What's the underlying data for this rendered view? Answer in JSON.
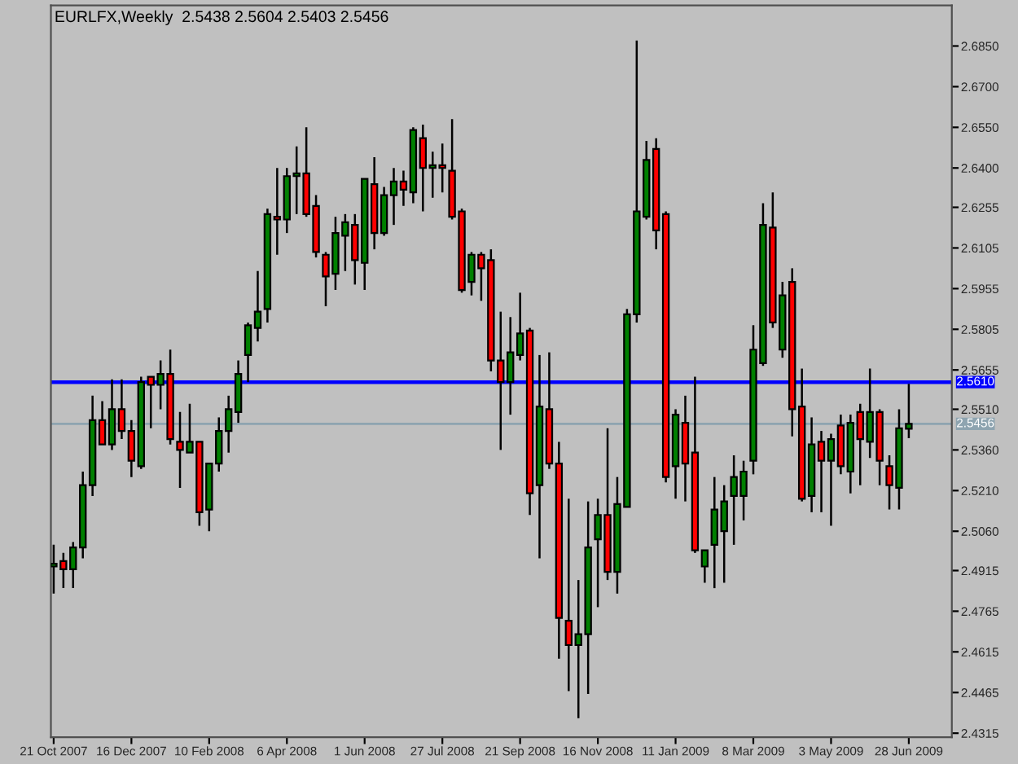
{
  "chart_data": {
    "type": "candlestick",
    "title": "EURLFX,Weekly  2.5438 2.5604 2.5403 2.5456",
    "x": [
      "2007-10-21",
      "2007-10-28",
      "2007-11-04",
      "2007-11-11",
      "2007-11-18",
      "2007-11-25",
      "2007-12-02",
      "2007-12-09",
      "2007-12-16",
      "2007-12-23",
      "2007-12-30",
      "2008-01-06",
      "2008-01-13",
      "2008-01-20",
      "2008-01-27",
      "2008-02-03",
      "2008-02-10",
      "2008-02-17",
      "2008-02-24",
      "2008-03-02",
      "2008-03-09",
      "2008-03-16",
      "2008-03-23",
      "2008-03-30",
      "2008-04-06",
      "2008-04-13",
      "2008-04-20",
      "2008-04-27",
      "2008-05-04",
      "2008-05-11",
      "2008-05-18",
      "2008-05-25",
      "2008-06-01",
      "2008-06-08",
      "2008-06-15",
      "2008-06-22",
      "2008-06-29",
      "2008-07-06",
      "2008-07-13",
      "2008-07-20",
      "2008-07-27",
      "2008-08-03",
      "2008-08-10",
      "2008-08-17",
      "2008-08-24",
      "2008-08-31",
      "2008-09-07",
      "2008-09-14",
      "2008-09-21",
      "2008-09-28",
      "2008-10-05",
      "2008-10-12",
      "2008-10-19",
      "2008-10-26",
      "2008-11-02",
      "2008-11-09",
      "2008-11-16",
      "2008-11-23",
      "2008-11-30",
      "2008-12-07",
      "2008-12-14",
      "2008-12-21",
      "2008-12-28",
      "2009-01-04",
      "2009-01-11",
      "2009-01-18",
      "2009-01-25",
      "2009-02-01",
      "2009-02-08",
      "2009-02-15",
      "2009-02-22",
      "2009-03-01",
      "2009-03-08",
      "2009-03-15",
      "2009-03-22",
      "2009-03-29",
      "2009-04-05",
      "2009-04-12",
      "2009-04-19",
      "2009-04-26",
      "2009-05-03",
      "2009-05-10",
      "2009-05-17",
      "2009-05-24",
      "2009-05-31",
      "2009-06-07",
      "2009-06-14",
      "2009-06-21",
      "2009-06-28"
    ],
    "ohlc": [
      [
        2.493,
        2.501,
        2.483,
        2.494
      ],
      [
        2.495,
        2.498,
        2.485,
        2.492
      ],
      [
        2.492,
        2.502,
        2.485,
        2.5
      ],
      [
        2.5,
        2.528,
        2.496,
        2.523
      ],
      [
        2.523,
        2.556,
        2.519,
        2.547
      ],
      [
        2.547,
        2.554,
        2.538,
        2.538
      ],
      [
        2.538,
        2.562,
        2.536,
        2.551
      ],
      [
        2.551,
        2.562,
        2.54,
        2.543
      ],
      [
        2.543,
        2.547,
        2.526,
        2.532
      ],
      [
        2.53,
        2.563,
        2.529,
        2.561
      ],
      [
        2.563,
        2.563,
        2.544,
        2.56
      ],
      [
        2.56,
        2.569,
        2.551,
        2.564
      ],
      [
        2.564,
        2.573,
        2.538,
        2.54
      ],
      [
        2.539,
        2.55,
        2.522,
        2.536
      ],
      [
        2.535,
        2.553,
        2.535,
        2.539
      ],
      [
        2.539,
        2.539,
        2.508,
        2.513
      ],
      [
        2.514,
        2.531,
        2.506,
        2.531
      ],
      [
        2.531,
        2.548,
        2.528,
        2.543
      ],
      [
        2.543,
        2.556,
        2.535,
        2.551
      ],
      [
        2.55,
        2.569,
        2.546,
        2.564
      ],
      [
        2.571,
        2.583,
        2.561,
        2.582
      ],
      [
        2.581,
        2.602,
        2.576,
        2.587
      ],
      [
        2.588,
        2.625,
        2.583,
        2.623
      ],
      [
        2.622,
        2.64,
        2.608,
        2.621
      ],
      [
        2.621,
        2.64,
        2.616,
        2.637
      ],
      [
        2.637,
        2.648,
        2.623,
        2.638
      ],
      [
        2.638,
        2.655,
        2.622,
        2.623
      ],
      [
        2.626,
        2.63,
        2.607,
        2.609
      ],
      [
        2.608,
        2.609,
        2.589,
        2.6
      ],
      [
        2.601,
        2.622,
        2.595,
        2.616
      ],
      [
        2.615,
        2.623,
        2.602,
        2.62
      ],
      [
        2.619,
        2.623,
        2.597,
        2.606
      ],
      [
        2.605,
        2.636,
        2.595,
        2.636
      ],
      [
        2.634,
        2.644,
        2.61,
        2.616
      ],
      [
        2.616,
        2.633,
        2.615,
        2.63
      ],
      [
        2.63,
        2.64,
        2.619,
        2.635
      ],
      [
        2.635,
        2.639,
        2.626,
        2.632
      ],
      [
        2.631,
        2.655,
        2.627,
        2.654
      ],
      [
        2.651,
        2.656,
        2.624,
        2.64
      ],
      [
        2.64,
        2.646,
        2.629,
        2.641
      ],
      [
        2.641,
        2.649,
        2.631,
        2.64
      ],
      [
        2.639,
        2.658,
        2.621,
        2.622
      ],
      [
        2.624,
        2.625,
        2.594,
        2.595
      ],
      [
        2.598,
        2.609,
        2.593,
        2.608
      ],
      [
        2.608,
        2.609,
        2.591,
        2.603
      ],
      [
        2.606,
        2.61,
        2.565,
        2.569
      ],
      [
        2.569,
        2.587,
        2.536,
        2.561
      ],
      [
        2.561,
        2.585,
        2.549,
        2.572
      ],
      [
        2.571,
        2.594,
        2.569,
        2.579
      ],
      [
        2.58,
        2.581,
        2.512,
        2.52
      ],
      [
        2.523,
        2.571,
        2.496,
        2.552
      ],
      [
        2.551,
        2.572,
        2.529,
        2.531
      ],
      [
        2.531,
        2.539,
        2.459,
        2.474
      ],
      [
        2.473,
        2.518,
        2.447,
        2.464
      ],
      [
        2.464,
        2.488,
        2.437,
        2.468
      ],
      [
        2.468,
        2.517,
        2.446,
        2.5
      ],
      [
        2.503,
        2.518,
        2.478,
        2.512
      ],
      [
        2.512,
        2.544,
        2.488,
        2.491
      ],
      [
        2.491,
        2.526,
        2.483,
        2.516
      ],
      [
        2.515,
        2.588,
        2.515,
        2.586
      ],
      [
        2.586,
        2.687,
        2.583,
        2.624
      ],
      [
        2.622,
        2.65,
        2.621,
        2.643
      ],
      [
        2.647,
        2.651,
        2.61,
        2.617
      ],
      [
        2.623,
        2.624,
        2.524,
        2.526
      ],
      [
        2.53,
        2.551,
        2.518,
        2.549
      ],
      [
        2.546,
        2.556,
        2.517,
        2.531
      ],
      [
        2.535,
        2.563,
        2.498,
        2.499
      ],
      [
        2.493,
        2.499,
        2.487,
        2.499
      ],
      [
        2.501,
        2.526,
        2.485,
        2.514
      ],
      [
        2.506,
        2.523,
        2.487,
        2.517
      ],
      [
        2.519,
        2.534,
        2.501,
        2.526
      ],
      [
        2.519,
        2.532,
        2.51,
        2.528
      ],
      [
        2.532,
        2.582,
        2.527,
        2.573
      ],
      [
        2.568,
        2.627,
        2.567,
        2.619
      ],
      [
        2.618,
        2.631,
        2.581,
        2.583
      ],
      [
        2.573,
        2.598,
        2.57,
        2.593
      ],
      [
        2.598,
        2.603,
        2.541,
        2.551
      ],
      [
        2.552,
        2.566,
        2.517,
        2.518
      ],
      [
        2.519,
        2.548,
        2.513,
        2.538
      ],
      [
        2.539,
        2.543,
        2.513,
        2.532
      ],
      [
        2.532,
        2.542,
        2.508,
        2.54
      ],
      [
        2.545,
        2.549,
        2.527,
        2.53
      ],
      [
        2.528,
        2.549,
        2.52,
        2.546
      ],
      [
        2.55,
        2.553,
        2.523,
        2.54
      ],
      [
        2.539,
        2.566,
        2.533,
        2.55
      ],
      [
        2.55,
        2.551,
        2.523,
        2.532
      ],
      [
        2.53,
        2.534,
        2.514,
        2.523
      ],
      [
        2.522,
        2.551,
        2.514,
        2.544
      ],
      [
        2.5438,
        2.5604,
        2.5403,
        2.5456
      ]
    ],
    "colors": [
      "#008000",
      "#ff0000",
      "#008000",
      "#008000",
      "#008000",
      "#ff0000",
      "#008000",
      "#ff0000",
      "#ff0000",
      "#008000",
      "#ff0000",
      "#008000",
      "#ff0000",
      "#ff0000",
      "#008000",
      "#ff0000",
      "#008000",
      "#008000",
      "#008000",
      "#008000",
      "#008000",
      "#008000",
      "#008000",
      "#ff0000",
      "#008000",
      "#008000",
      "#ff0000",
      "#ff0000",
      "#ff0000",
      "#008000",
      "#008000",
      "#ff0000",
      "#008000",
      "#ff0000",
      "#008000",
      "#008000",
      "#ff0000",
      "#008000",
      "#ff0000",
      "#008000",
      "#ff0000",
      "#ff0000",
      "#ff0000",
      "#008000",
      "#ff0000",
      "#ff0000",
      "#ff0000",
      "#008000",
      "#008000",
      "#ff0000",
      "#008000",
      "#ff0000",
      "#ff0000",
      "#ff0000",
      "#008000",
      "#008000",
      "#008000",
      "#ff0000",
      "#008000",
      "#008000",
      "#008000",
      "#008000",
      "#ff0000",
      "#ff0000",
      "#008000",
      "#ff0000",
      "#ff0000",
      "#008000",
      "#008000",
      "#008000",
      "#008000",
      "#008000",
      "#008000",
      "#008000",
      "#ff0000",
      "#008000",
      "#ff0000",
      "#ff0000",
      "#008000",
      "#ff0000",
      "#008000",
      "#ff0000",
      "#008000",
      "#ff0000",
      "#008000",
      "#ff0000",
      "#ff0000",
      "#008000",
      "#008000"
    ],
    "xlim": [
      "2007-10-19",
      "2009-07-29"
    ],
    "xticks": [
      {
        "value": "2007-10-21",
        "label": "21 Oct 2007"
      },
      {
        "value": "2007-12-16",
        "label": "16 Dec 2007"
      },
      {
        "value": "2008-02-10",
        "label": "10 Feb 2008"
      },
      {
        "value": "2008-04-06",
        "label": "6 Apr 2008"
      },
      {
        "value": "2008-06-01",
        "label": "1 Jun 2008"
      },
      {
        "value": "2008-07-27",
        "label": "27 Jul 2008"
      },
      {
        "value": "2008-09-21",
        "label": "21 Sep 2008"
      },
      {
        "value": "2008-11-16",
        "label": "16 Nov 2008"
      },
      {
        "value": "2009-01-11",
        "label": "11 Jan 2009"
      },
      {
        "value": "2009-03-08",
        "label": "8 Mar 2009"
      },
      {
        "value": "2009-05-03",
        "label": "3 May 2009"
      },
      {
        "value": "2009-06-28",
        "label": "28 Jun 2009"
      }
    ],
    "ylim": [
      2.43,
      2.7
    ],
    "yticks": [
      {
        "value": 2.4315,
        "label": "2.4315"
      },
      {
        "value": 2.4465,
        "label": "2.4465"
      },
      {
        "value": 2.4615,
        "label": "2.4615"
      },
      {
        "value": 2.4765,
        "label": "2.4765"
      },
      {
        "value": 2.4915,
        "label": "2.4915"
      },
      {
        "value": 2.506,
        "label": "2.5060"
      },
      {
        "value": 2.521,
        "label": "2.5210"
      },
      {
        "value": 2.536,
        "label": "2.5360"
      },
      {
        "value": 2.551,
        "label": "2.5510"
      },
      {
        "value": 2.5655,
        "label": "2.5655"
      },
      {
        "value": 2.5805,
        "label": "2.5805"
      },
      {
        "value": 2.5955,
        "label": "2.5955"
      },
      {
        "value": 2.6105,
        "label": "2.6105"
      },
      {
        "value": 2.6255,
        "label": "2.6255"
      },
      {
        "value": 2.64,
        "label": "2.6400"
      },
      {
        "value": 2.655,
        "label": "2.6550"
      },
      {
        "value": 2.67,
        "label": "2.6700"
      },
      {
        "value": 2.685,
        "label": "2.6850"
      }
    ],
    "ref_lines": [
      {
        "axis": "y",
        "value": 2.561,
        "label": "2.5610",
        "color": "#0000ff"
      },
      {
        "axis": "y",
        "value": 2.5456,
        "label": "2.5456",
        "color": "#8ea4b0"
      }
    ],
    "grid": false,
    "legend": false
  }
}
